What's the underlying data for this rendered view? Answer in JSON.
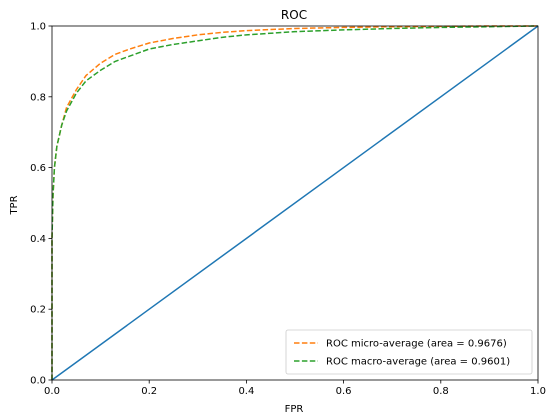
{
  "chart_data": {
    "type": "line",
    "title": "ROC",
    "xlabel": "FPR",
    "ylabel": "TPR",
    "xlim": [
      0.0,
      1.0
    ],
    "ylim": [
      0.0,
      1.0
    ],
    "xticks": [
      "0.0",
      "0.2",
      "0.4",
      "0.6",
      "0.8",
      "1.0"
    ],
    "yticks": [
      "0.0",
      "0.2",
      "0.4",
      "0.6",
      "0.8",
      "1.0"
    ],
    "grid": false,
    "legend_position": "bottom-right",
    "series": [
      {
        "name": "ROC micro-average (area = 0.9676)",
        "color": "#ff7f0e",
        "style": "dashed",
        "x": [
          0.0,
          0.0,
          0.002,
          0.005,
          0.01,
          0.02,
          0.03,
          0.05,
          0.07,
          0.1,
          0.13,
          0.16,
          0.2,
          0.25,
          0.3,
          0.35,
          0.4,
          0.5,
          0.6,
          0.7,
          0.8,
          0.9,
          1.0
        ],
        "y": [
          0.0,
          0.4,
          0.52,
          0.6,
          0.66,
          0.72,
          0.77,
          0.82,
          0.86,
          0.895,
          0.92,
          0.935,
          0.952,
          0.965,
          0.975,
          0.982,
          0.987,
          0.993,
          0.996,
          0.998,
          0.999,
          1.0,
          1.0
        ]
      },
      {
        "name": "ROC macro-average (area = 0.9601)",
        "color": "#2ca02c",
        "style": "dashed",
        "x": [
          0.0,
          0.0,
          0.002,
          0.005,
          0.01,
          0.02,
          0.03,
          0.05,
          0.07,
          0.1,
          0.13,
          0.16,
          0.2,
          0.25,
          0.3,
          0.35,
          0.4,
          0.5,
          0.6,
          0.7,
          0.8,
          0.9,
          1.0
        ],
        "y": [
          0.0,
          0.4,
          0.52,
          0.6,
          0.66,
          0.72,
          0.76,
          0.81,
          0.845,
          0.875,
          0.9,
          0.915,
          0.935,
          0.948,
          0.958,
          0.968,
          0.975,
          0.984,
          0.989,
          0.993,
          0.996,
          0.998,
          1.0
        ]
      },
      {
        "color": "#1f77b4",
        "style": "solid",
        "x": [
          0.0,
          1.0
        ],
        "y": [
          0.0,
          1.0
        ]
      }
    ]
  }
}
